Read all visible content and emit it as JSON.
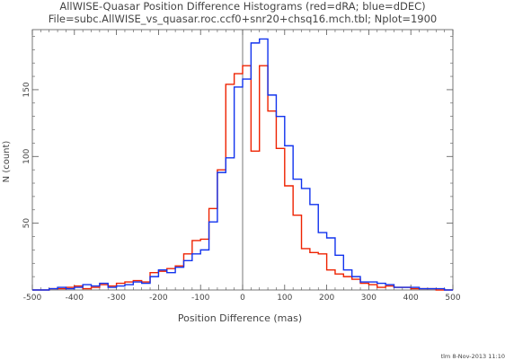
{
  "chart_data": {
    "type": "histogram",
    "title_line1": "AllWISE-Quasar Position Difference Histograms (red=dRA; blue=dDEC)",
    "title_line2": "File=subc.AllWISE_vs_quasar.roc.ccf0+snr20+chsq16.mch.tbl; Nplot=1900",
    "xlabel": "Position Difference (mas)",
    "ylabel": "N (count)",
    "footer": "tlm  8-Nov-2013 11:10",
    "xlim": [
      -500,
      500
    ],
    "ylim": [
      0,
      195
    ],
    "x_ticks": [
      -500,
      -400,
      -300,
      -200,
      -100,
      0,
      100,
      200,
      300,
      400,
      500
    ],
    "y_ticks": [
      50,
      100,
      150
    ],
    "bin_width": 20,
    "bin_edges_start": -500,
    "grid": false,
    "series": [
      {
        "name": "dRA",
        "color": "#ee2200",
        "counts": [
          0,
          0,
          1,
          1,
          2,
          3,
          1,
          2,
          4,
          3,
          5,
          6,
          7,
          6,
          13,
          14,
          16,
          18,
          27,
          37,
          38,
          61,
          90,
          154,
          162,
          168,
          104,
          168,
          134,
          106,
          78,
          56,
          31,
          28,
          27,
          15,
          12,
          10,
          8,
          5,
          4,
          2,
          3,
          2,
          2,
          1,
          1,
          1,
          0,
          0
        ]
      },
      {
        "name": "dDEC",
        "color": "#1133ee",
        "counts": [
          0,
          0,
          1,
          2,
          1,
          2,
          4,
          3,
          5,
          2,
          3,
          4,
          6,
          5,
          10,
          15,
          13,
          17,
          22,
          27,
          30,
          51,
          88,
          99,
          152,
          158,
          185,
          188,
          146,
          130,
          108,
          83,
          76,
          64,
          43,
          39,
          26,
          15,
          10,
          6,
          6,
          5,
          4,
          2,
          2,
          2,
          1,
          1,
          1,
          0
        ]
      }
    ]
  }
}
